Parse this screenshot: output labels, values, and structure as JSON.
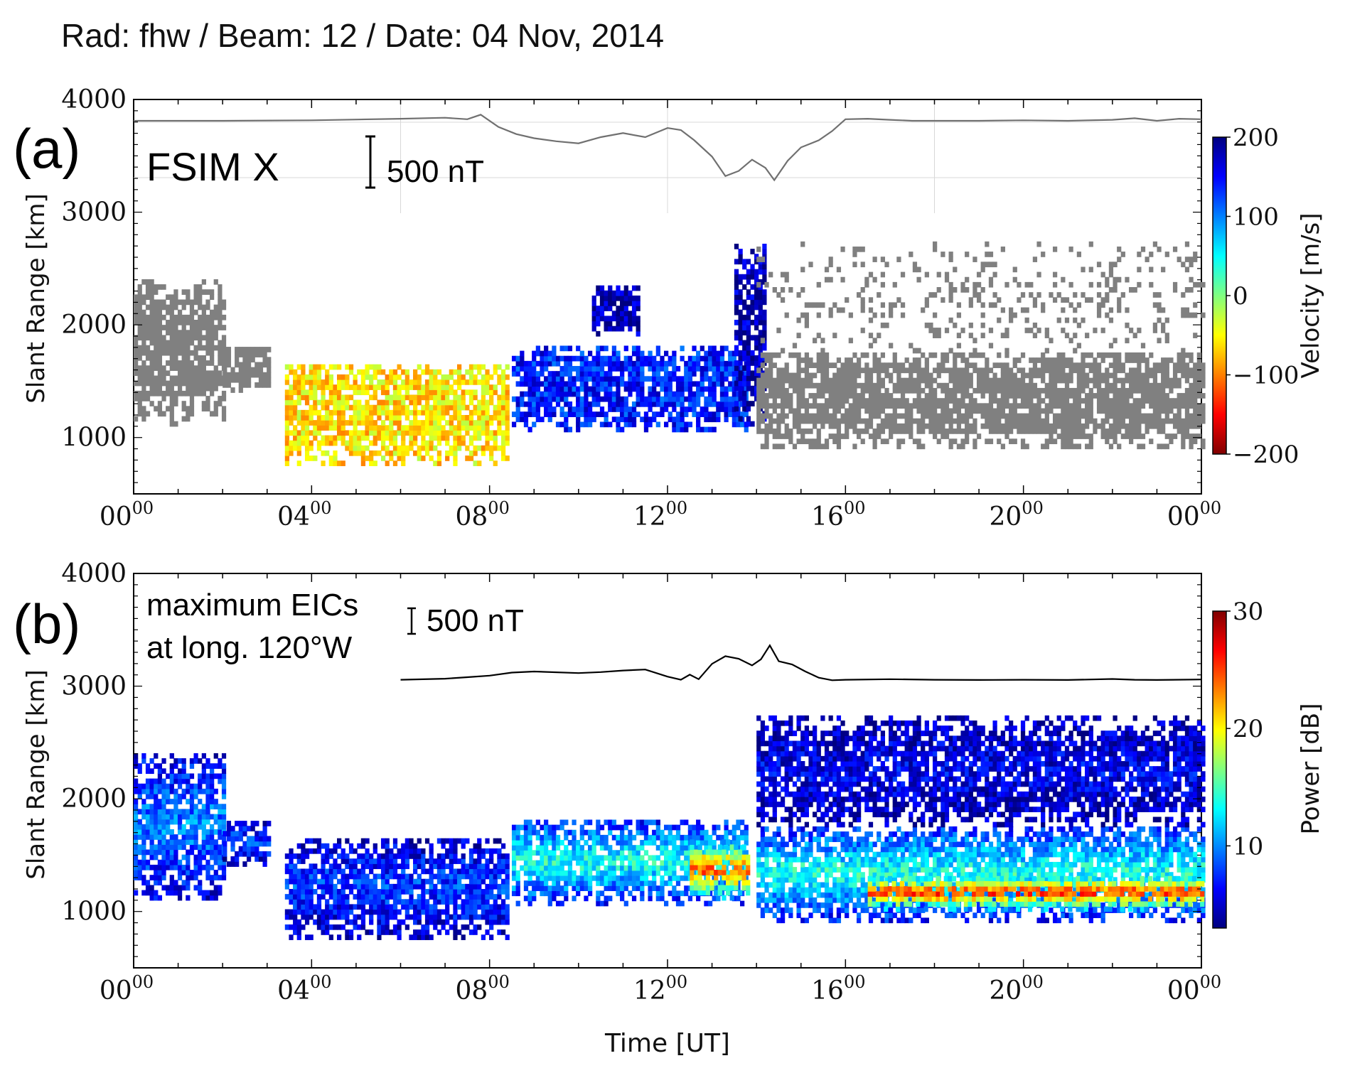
{
  "figure_title": "Rad: fhw / Beam: 12 / Date: 04 Nov, 2014",
  "time_axis": {
    "label": "Time [UT]",
    "ticks": [
      {
        "base": "00",
        "sup": "00"
      },
      {
        "base": "04",
        "sup": "00"
      },
      {
        "base": "08",
        "sup": "00"
      },
      {
        "base": "12",
        "sup": "00"
      },
      {
        "base": "16",
        "sup": "00"
      },
      {
        "base": "20",
        "sup": "00"
      },
      {
        "base": "00",
        "sup": "00"
      }
    ]
  },
  "panels": [
    {
      "panel_label": "(a)",
      "ylabel": "Slant Range [km]",
      "yticks": [
        "4000",
        "3000",
        "2000",
        "1000"
      ],
      "inset_label": "FSIM X",
      "scale_bar_label": "500 nT",
      "colorbar": {
        "label": "Velocity [m/s]",
        "ticks": [
          "200",
          "100",
          "0",
          "−100",
          "−200"
        ],
        "range": [
          -200,
          200
        ],
        "colors": [
          "#800000",
          "#ff0000",
          "#ff8000",
          "#ffff00",
          "#80ff80",
          "#00ffff",
          "#0080ff",
          "#0000ff",
          "#000080"
        ]
      }
    },
    {
      "panel_label": "(b)",
      "ylabel": "Slant Range [km]",
      "yticks": [
        "4000",
        "3000",
        "2000",
        "1000"
      ],
      "inset_label_line1": "maximum EICs",
      "inset_label_line2": "at long. 120°W",
      "scale_bar_label": "500 nT",
      "colorbar": {
        "label": "Power [dB]",
        "ticks": [
          "30",
          "20",
          "10"
        ],
        "range": [
          3,
          30
        ],
        "colors": [
          "#000080",
          "#0000ff",
          "#0080ff",
          "#00ffff",
          "#80ff80",
          "#ffff00",
          "#ff8000",
          "#ff0000",
          "#800000"
        ]
      }
    }
  ],
  "chart_data": [
    {
      "type": "heatmap",
      "panel": "(a)",
      "title": "Rad: fhw / Beam: 12 / Date: 04 Nov, 2014",
      "xlabel": "Time [UT]",
      "ylabel": "Slant Range [km]",
      "xlim_hours": [
        0,
        24
      ],
      "ylim_km": [
        500,
        4000
      ],
      "colorbar_label": "Velocity [m/s]",
      "color_range": [
        -200,
        200
      ],
      "ground_scatter_color": "#808080",
      "scatter_regions": [
        {
          "t_start": 0.0,
          "t_end": 2.0,
          "r_low": 1100,
          "r_high": 2400,
          "kind": "ground",
          "velocity": 0
        },
        {
          "t_start": 2.0,
          "t_end": 3.0,
          "r_low": 1400,
          "r_high": 1800,
          "kind": "ground",
          "velocity": 0
        },
        {
          "t_start": 3.4,
          "t_end": 8.4,
          "r_low": 750,
          "r_high": 1650,
          "kind": "ionospheric",
          "velocity": -60
        },
        {
          "t_start": 8.5,
          "t_end": 13.8,
          "r_low": 1050,
          "r_high": 1800,
          "kind": "ionospheric",
          "velocity": 140
        },
        {
          "t_start": 10.3,
          "t_end": 11.3,
          "r_low": 1900,
          "r_high": 2350,
          "kind": "ionospheric",
          "velocity": 180
        },
        {
          "t_start": 13.5,
          "t_end": 14.2,
          "r_low": 1100,
          "r_high": 2700,
          "kind": "ionospheric",
          "velocity": 180
        },
        {
          "t_start": 14.0,
          "t_end": 24.0,
          "r_low": 900,
          "r_high": 1750,
          "kind": "ground",
          "velocity": 0
        },
        {
          "t_start": 14.0,
          "t_end": 24.0,
          "r_low": 1750,
          "r_high": 2700,
          "kind": "ground-sparse",
          "velocity": 0
        }
      ],
      "magnetometer_trace": {
        "name": "FSIM X",
        "units": "nT",
        "time_hours": [
          0,
          2,
          4,
          6,
          7,
          7.5,
          7.8,
          8.2,
          8.6,
          9,
          9.5,
          10,
          10.5,
          11,
          11.5,
          12,
          12.3,
          12.6,
          13,
          13.3,
          13.6,
          13.9,
          14.2,
          14.4,
          14.7,
          15,
          15.4,
          15.7,
          16,
          16.5,
          17,
          17.5,
          18,
          19,
          20,
          21,
          22,
          22.5,
          23,
          23.5,
          24
        ],
        "delta_nT": [
          0,
          0,
          5,
          20,
          30,
          15,
          60,
          -60,
          -130,
          -170,
          -200,
          -220,
          -160,
          -120,
          -160,
          -70,
          -90,
          -190,
          -350,
          -540,
          -490,
          -380,
          -460,
          -580,
          -390,
          -260,
          -190,
          -100,
          15,
          20,
          10,
          0,
          0,
          0,
          5,
          0,
          10,
          25,
          0,
          20,
          15
        ]
      }
    },
    {
      "type": "heatmap",
      "panel": "(b)",
      "xlabel": "Time [UT]",
      "ylabel": "Slant Range [km]",
      "xlim_hours": [
        0,
        24
      ],
      "ylim_km": [
        500,
        4000
      ],
      "colorbar_label": "Power [dB]",
      "color_range": [
        3,
        30
      ],
      "scatter_regions": [
        {
          "t_start": 0.0,
          "t_end": 2.0,
          "r_low": 1100,
          "r_high": 2400,
          "power_db": 10
        },
        {
          "t_start": 2.0,
          "t_end": 3.0,
          "r_low": 1400,
          "r_high": 1800,
          "power_db": 8
        },
        {
          "t_start": 3.4,
          "t_end": 8.4,
          "r_low": 750,
          "r_high": 1650,
          "power_db": 8
        },
        {
          "t_start": 8.5,
          "t_end": 13.8,
          "r_low": 1050,
          "r_high": 1800,
          "power_db": 14
        },
        {
          "t_start": 12.5,
          "t_end": 13.8,
          "r_low": 1100,
          "r_high": 1600,
          "power_db": 25
        },
        {
          "t_start": 14.0,
          "t_end": 24.0,
          "r_low": 900,
          "r_high": 1750,
          "power_db": 14
        },
        {
          "t_start": 16.5,
          "t_end": 24.0,
          "r_low": 1000,
          "r_high": 1300,
          "power_db": 26
        },
        {
          "t_start": 14.0,
          "t_end": 24.0,
          "r_low": 1750,
          "r_high": 2700,
          "power_db": 6
        }
      ],
      "magnetometer_trace": {
        "name": "maximum EICs at long. 120°W",
        "units": "nT",
        "time_hours": [
          6,
          7,
          7.5,
          8,
          8.5,
          9,
          10,
          10.5,
          11,
          11.5,
          12,
          12.3,
          12.5,
          12.7,
          13,
          13.3,
          13.6,
          13.9,
          14.1,
          14.3,
          14.5,
          14.8,
          15.1,
          15.4,
          15.7,
          16,
          17,
          18,
          19,
          20,
          21,
          22,
          22.5,
          23,
          24
        ],
        "eic_nT": [
          20,
          40,
          70,
          100,
          160,
          180,
          150,
          170,
          200,
          220,
          80,
          20,
          120,
          30,
          330,
          480,
          430,
          300,
          420,
          690,
          380,
          320,
          180,
          60,
          10,
          20,
          30,
          20,
          15,
          20,
          15,
          35,
          20,
          15,
          25
        ]
      }
    }
  ]
}
